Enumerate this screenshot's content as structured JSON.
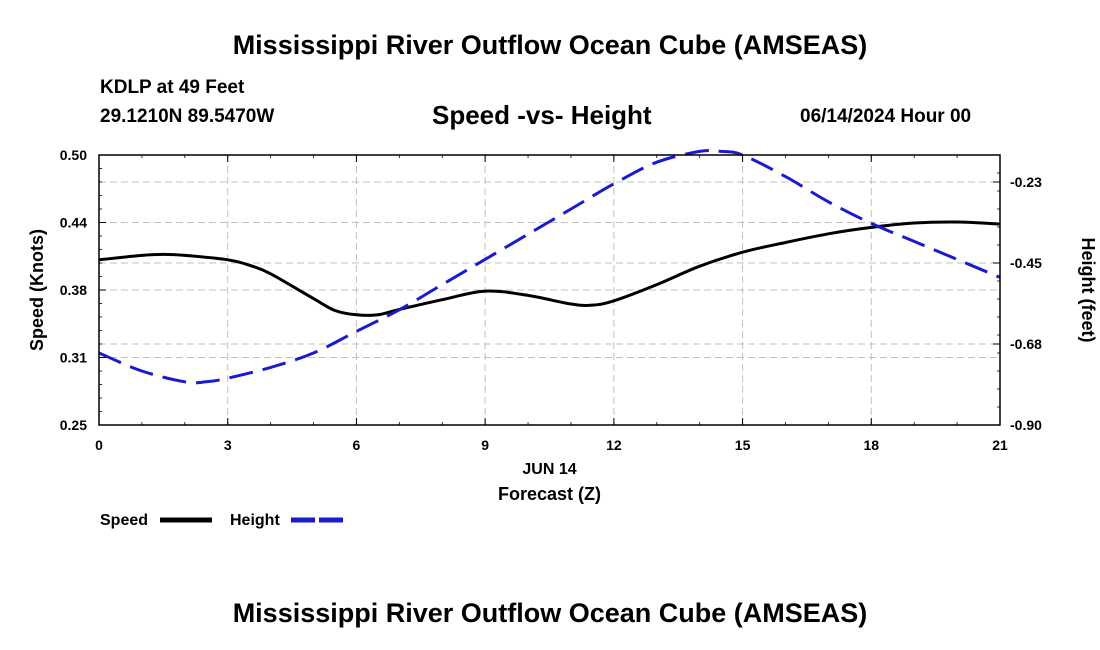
{
  "header": {
    "title": "Mississippi River Outflow Ocean Cube (AMSEAS)",
    "station": "KDLP at 49 Feet",
    "coords": "29.1210N  89.5470W",
    "subtitle": "Speed -vs- Height",
    "datetime": "06/14/2024 Hour 00"
  },
  "footer": {
    "title": "Mississippi River Outflow Ocean Cube (AMSEAS)"
  },
  "colors": {
    "speed": "#000000",
    "height": "#1a1ad0",
    "grid": "#c0c0c0"
  },
  "chart_data": {
    "type": "line",
    "title": "Speed -vs- Height",
    "xlabel": "Forecast (Z)",
    "xsublabel": "JUN 14",
    "ylabel_left": "Speed (Knots)",
    "ylabel_right": "Height (feet)",
    "xlim": [
      0,
      21
    ],
    "ylim_left": [
      0.25,
      0.5
    ],
    "ylim_right": [
      -0.9,
      -0.15
    ],
    "x_ticks": [
      "0",
      "3",
      "6",
      "9",
      "12",
      "15",
      "18",
      "21"
    ],
    "x_tick_values": [
      0,
      3,
      6,
      9,
      12,
      15,
      18,
      21
    ],
    "y_ticks_left": [
      "0.25",
      "0.31",
      "0.38",
      "0.44",
      "0.50"
    ],
    "y_tick_values_left": [
      0.25,
      0.3125,
      0.375,
      0.4375,
      0.5
    ],
    "y_ticks_right": [
      "-0.90",
      "-0.68",
      "-0.45",
      "-0.23"
    ],
    "y_tick_values_right": [
      -0.9,
      -0.675,
      -0.45,
      -0.225
    ],
    "grid": true,
    "legend": [
      "Speed",
      "Height"
    ],
    "legend_position": "bottom-left",
    "series": [
      {
        "name": "Speed",
        "axis": "left",
        "style": "solid",
        "x": [
          0,
          1,
          1.5,
          2,
          3,
          3.5,
          4,
          5,
          5.5,
          6,
          6.5,
          7,
          8,
          9,
          10,
          11,
          11.5,
          12,
          13,
          14,
          15,
          16,
          17,
          18,
          19,
          20,
          21
        ],
        "values": [
          0.403,
          0.407,
          0.408,
          0.407,
          0.403,
          0.398,
          0.39,
          0.367,
          0.356,
          0.352,
          0.352,
          0.357,
          0.366,
          0.374,
          0.37,
          0.362,
          0.361,
          0.365,
          0.38,
          0.397,
          0.41,
          0.419,
          0.427,
          0.433,
          0.437,
          0.438,
          0.436
        ]
      },
      {
        "name": "Height",
        "axis": "right",
        "style": "dashed",
        "x": [
          0,
          1,
          2,
          2.5,
          3,
          4,
          5,
          6,
          7,
          8,
          9,
          10,
          11,
          12,
          13,
          14,
          14.5,
          15,
          16,
          17,
          18,
          19,
          20,
          21
        ],
        "values": [
          -0.7,
          -0.75,
          -0.78,
          -0.78,
          -0.77,
          -0.74,
          -0.7,
          -0.64,
          -0.58,
          -0.51,
          -0.44,
          -0.37,
          -0.3,
          -0.23,
          -0.17,
          -0.14,
          -0.14,
          -0.15,
          -0.21,
          -0.28,
          -0.34,
          -0.39,
          -0.44,
          -0.49
        ]
      }
    ]
  }
}
